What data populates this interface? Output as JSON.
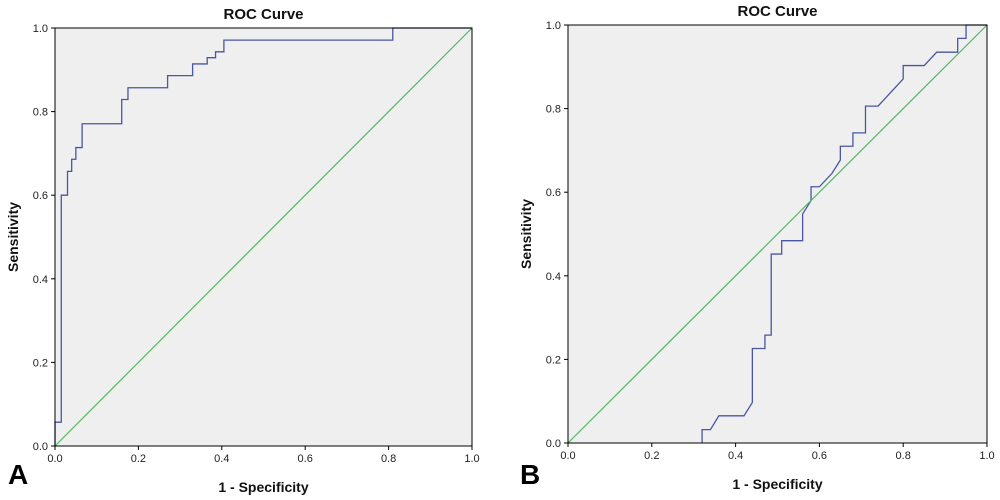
{
  "panels": [
    {
      "letter": "A"
    },
    {
      "letter": "B"
    }
  ],
  "colors": {
    "background": "#efefef",
    "roc_line": "#4a56a0",
    "reference_line": "#4fb85c",
    "frame": "#000000"
  },
  "chart_data": [
    {
      "type": "line",
      "title": "ROC Curve",
      "xlabel": "1 - Specificity",
      "ylabel": "Sensitivity",
      "xlim": [
        0,
        1
      ],
      "ylim": [
        0,
        1
      ],
      "xticks": [
        "0.0",
        "0.2",
        "0.4",
        "0.6",
        "0.8",
        "1.0"
      ],
      "yticks": [
        "0.0",
        "0.2",
        "0.4",
        "0.6",
        "0.8",
        "1.0"
      ],
      "grid": false,
      "series": [
        {
          "role": "roc",
          "x": [
            0,
            0,
            0.015,
            0.015,
            0.03,
            0.03,
            0.04,
            0.04,
            0.05,
            0.05,
            0.065,
            0.065,
            0.16,
            0.16,
            0.175,
            0.175,
            0.27,
            0.27,
            0.33,
            0.33,
            0.365,
            0.365,
            0.385,
            0.385,
            0.405,
            0.405,
            0.81,
            0.81,
            1.0
          ],
          "y": [
            0,
            0.057,
            0.057,
            0.6,
            0.6,
            0.657,
            0.657,
            0.686,
            0.686,
            0.714,
            0.714,
            0.771,
            0.771,
            0.829,
            0.829,
            0.857,
            0.857,
            0.886,
            0.886,
            0.914,
            0.914,
            0.929,
            0.929,
            0.943,
            0.943,
            0.971,
            0.971,
            1.0,
            1.0
          ]
        },
        {
          "role": "reference",
          "x": [
            0,
            1
          ],
          "y": [
            0,
            1
          ]
        }
      ]
    },
    {
      "type": "line",
      "title": "ROC Curve",
      "xlabel": "1 - Specificity",
      "ylabel": "Sensitivity",
      "xlim": [
        0,
        1
      ],
      "ylim": [
        0,
        1
      ],
      "xticks": [
        "0.0",
        "0.2",
        "0.4",
        "0.6",
        "0.8",
        "1.0"
      ],
      "yticks": [
        "0.0",
        "0.2",
        "0.4",
        "0.6",
        "0.8",
        "1.0"
      ],
      "grid": false,
      "series": [
        {
          "role": "roc",
          "x": [
            0.32,
            0.32,
            0.34,
            0.36,
            0.36,
            0.42,
            0.44,
            0.44,
            0.47,
            0.47,
            0.485,
            0.485,
            0.51,
            0.51,
            0.56,
            0.56,
            0.58,
            0.58,
            0.6,
            0.63,
            0.65,
            0.65,
            0.68,
            0.68,
            0.71,
            0.71,
            0.74,
            0.8,
            0.8,
            0.85,
            0.88,
            0.88,
            0.93,
            0.93,
            0.95,
            0.95,
            1.0
          ],
          "y": [
            0,
            0.032,
            0.032,
            0.065,
            0.065,
            0.065,
            0.097,
            0.226,
            0.226,
            0.258,
            0.258,
            0.452,
            0.452,
            0.484,
            0.484,
            0.548,
            0.58,
            0.613,
            0.613,
            0.645,
            0.677,
            0.71,
            0.71,
            0.742,
            0.742,
            0.806,
            0.806,
            0.871,
            0.903,
            0.903,
            0.935,
            0.935,
            0.935,
            0.968,
            0.968,
            1.0,
            1.0
          ]
        },
        {
          "role": "reference",
          "x": [
            0,
            1
          ],
          "y": [
            0,
            1
          ]
        }
      ]
    }
  ]
}
